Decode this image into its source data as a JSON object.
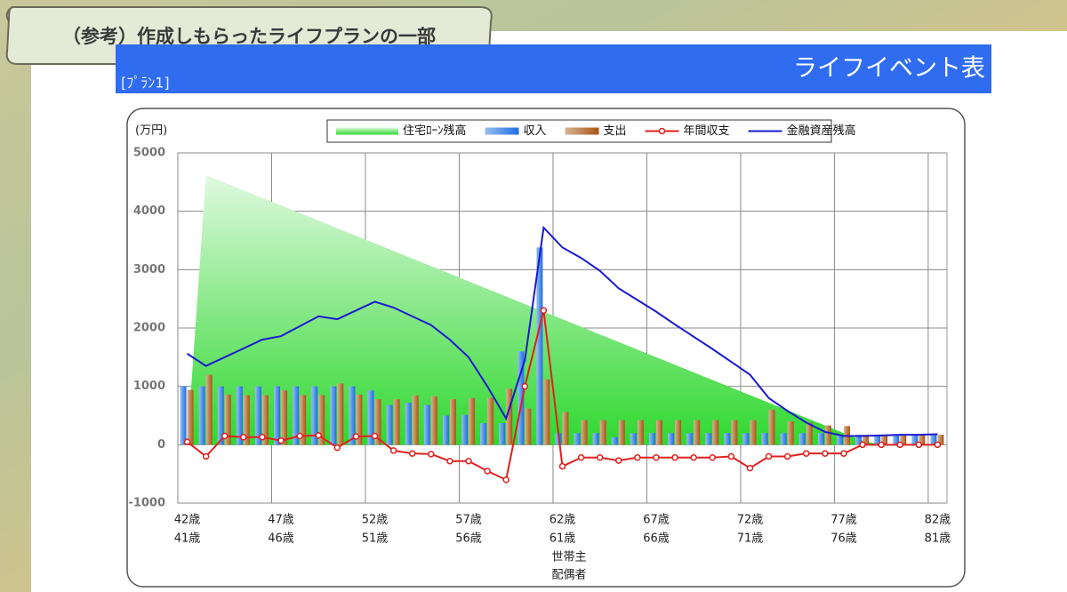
{
  "header": {
    "title": "（参考）作成しもらったライフプランの一部"
  },
  "banner": {
    "plan": "[ﾌﾟﾗﾝ1]",
    "title": "ライフイベント表"
  },
  "chart_data": {
    "type": "combo",
    "ylabel": "(万円)",
    "xlabel": "世帯主",
    "xlabel2": "配偶者",
    "categories": [
      "42歳",
      null,
      null,
      null,
      null,
      "47歳",
      null,
      null,
      null,
      null,
      "52歳",
      null,
      null,
      null,
      null,
      "57歳",
      null,
      null,
      null,
      null,
      "62歳",
      null,
      null,
      null,
      null,
      "67歳",
      null,
      null,
      null,
      null,
      "72歳",
      null,
      null,
      null,
      null,
      "77歳",
      null,
      null,
      null,
      null,
      "82歳"
    ],
    "categories2": [
      "41歳",
      null,
      null,
      null,
      null,
      "46歳",
      null,
      null,
      null,
      null,
      "51歳",
      null,
      null,
      null,
      null,
      "56歳",
      null,
      null,
      null,
      null,
      "61歳",
      null,
      null,
      null,
      null,
      "66歳",
      null,
      null,
      null,
      null,
      "71歳",
      null,
      null,
      null,
      null,
      "76歳",
      null,
      null,
      null,
      null,
      "81歳"
    ],
    "ylim": [
      -1000,
      5000
    ],
    "yticks": [
      -1000,
      0,
      1000,
      2000,
      3000,
      4000,
      5000
    ],
    "grid": true,
    "series": [
      {
        "name": "住宅ﾛｰﾝ残高",
        "type": "area",
        "color": "#2fd82f",
        "values": [
          0,
          4620,
          4490,
          4360,
          4230,
          4100,
          3970,
          3840,
          3710,
          3580,
          3450,
          3320,
          3190,
          3060,
          2930,
          2800,
          2670,
          2540,
          2410,
          2280,
          2150,
          2020,
          1890,
          1760,
          1630,
          1500,
          1370,
          1240,
          1110,
          980,
          850,
          720,
          590,
          460,
          330,
          200,
          70,
          0,
          0,
          0,
          0
        ]
      },
      {
        "name": "収入",
        "type": "bar",
        "color": "#1c6fe0",
        "values": [
          1000,
          1000,
          1000,
          1000,
          1000,
          1000,
          1000,
          1000,
          1000,
          1000,
          930,
          680,
          720,
          680,
          500,
          510,
          370,
          370,
          1600,
          3380,
          200,
          200,
          200,
          130,
          200,
          200,
          200,
          200,
          200,
          200,
          200,
          200,
          200,
          200,
          200,
          160,
          170,
          170,
          170,
          170,
          170
        ]
      },
      {
        "name": "支出",
        "type": "bar",
        "color": "#a85512",
        "values": [
          940,
          1200,
          860,
          850,
          850,
          930,
          850,
          850,
          1050,
          860,
          780,
          780,
          840,
          830,
          780,
          800,
          800,
          960,
          620,
          1120,
          560,
          420,
          420,
          420,
          420,
          420,
          420,
          420,
          420,
          420,
          420,
          600,
          400,
          380,
          330,
          320,
          170,
          170,
          170,
          170,
          170
        ]
      },
      {
        "name": "年間収支",
        "type": "line",
        "color": "#e02020",
        "markers": true,
        "values": [
          50,
          -200,
          150,
          130,
          130,
          70,
          150,
          160,
          -50,
          140,
          150,
          -100,
          -150,
          -160,
          -280,
          -280,
          -450,
          -600,
          1000,
          2300,
          -370,
          -220,
          -220,
          -270,
          -220,
          -220,
          -220,
          -220,
          -220,
          -200,
          -400,
          -200,
          -200,
          -150,
          -150,
          -150,
          0,
          0,
          0,
          0,
          0
        ]
      },
      {
        "name": "金融資産残高",
        "type": "line",
        "color": "#1a1ad0",
        "markers": false,
        "values": [
          1560,
          1350,
          1500,
          1650,
          1800,
          1860,
          2030,
          2200,
          2150,
          2300,
          2450,
          2350,
          2200,
          2050,
          1800,
          1500,
          1000,
          450,
          1450,
          3720,
          3380,
          3200,
          2980,
          2680,
          2480,
          2280,
          2060,
          1850,
          1640,
          1420,
          1200,
          800,
          580,
          380,
          220,
          150,
          150,
          160,
          170,
          170,
          180
        ]
      }
    ]
  }
}
